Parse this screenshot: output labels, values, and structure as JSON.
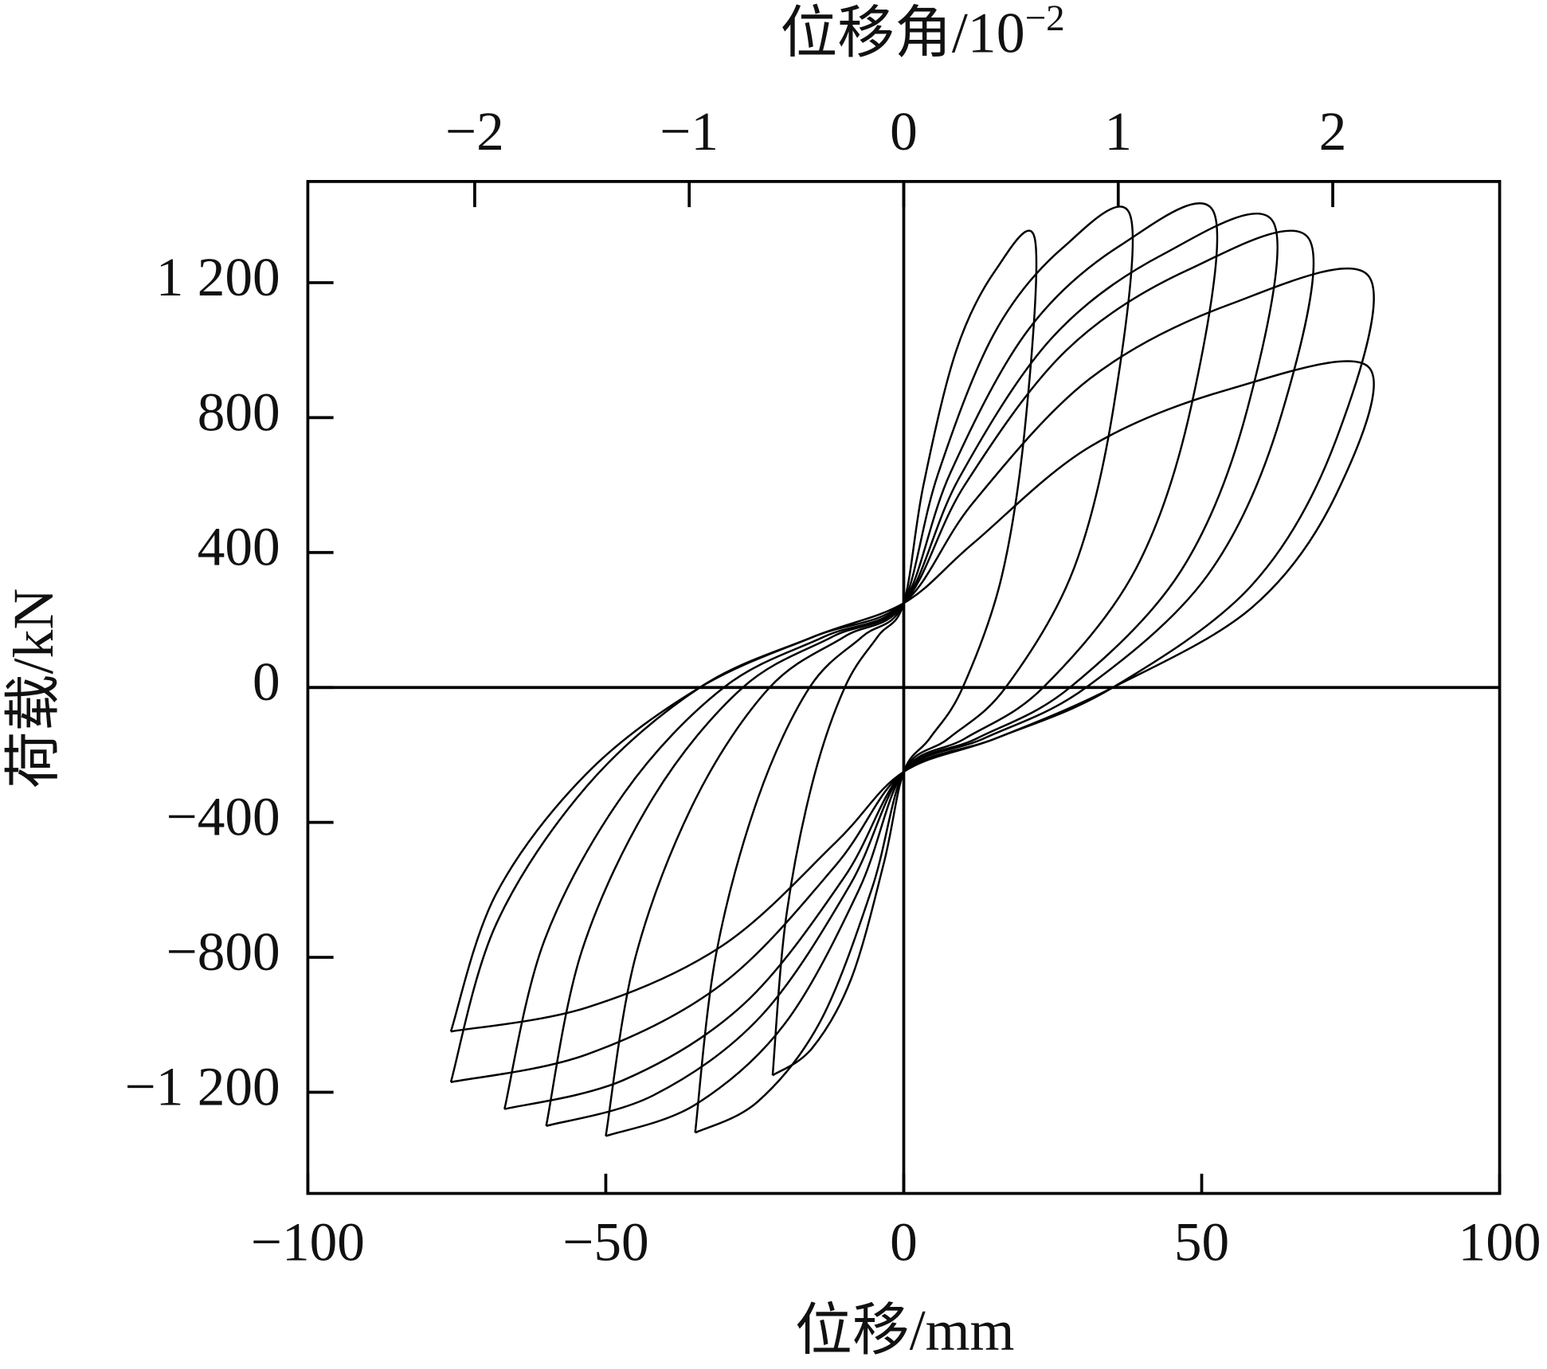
{
  "chart_data": {
    "type": "line",
    "xlabel": "位移/mm",
    "ylabel": "荷载/kN",
    "x2label": "位移角/10",
    "x2label_exponent": "−2",
    "color": "#000000",
    "zero_lines": true,
    "xlim": [
      -100,
      100
    ],
    "xticks": [
      {
        "value": -100,
        "label": "−100"
      },
      {
        "value": -50,
        "label": "−50"
      },
      0,
      50,
      100
    ],
    "x2lim": [
      -2.778,
      2.778
    ],
    "x2ticks": [
      {
        "value": -2,
        "label": "−2"
      },
      {
        "value": -1,
        "label": "−1"
      },
      0,
      1,
      2
    ],
    "ylim": [
      -1500,
      1500
    ],
    "yticks": [
      {
        "value": -1200,
        "label": "−1 200"
      },
      {
        "value": -800,
        "label": "−800"
      },
      {
        "value": -400,
        "label": "−400"
      },
      0,
      400,
      800,
      {
        "value": 1200,
        "label": "1 200"
      }
    ],
    "series": [
      {
        "x": [
          -22,
          -19.8,
          -15.4,
          -9.9,
          -4.4,
          0,
          3.3,
          8.8,
          15.4,
          22,
          20.5,
          16.5,
          9.9,
          4.4,
          0,
          -3.3,
          -8.8,
          -15.4,
          -22
        ],
        "values": [
          -1150,
          -690,
          -288,
          0,
          150,
          250,
          599,
          998,
          1237,
          1330,
          798,
          333,
          0,
          -150,
          -250,
          -518,
          -863,
          -1070,
          -1150
        ]
      },
      {
        "x": [
          -35,
          -31.5,
          -24.5,
          -15.8,
          -7,
          0,
          5.7,
          15.2,
          26.6,
          38,
          35.3,
          28.5,
          17.1,
          7.6,
          0,
          -5.3,
          -14,
          -24.5,
          -35
        ],
        "values": [
          -1320,
          -792,
          -330,
          0,
          150,
          250,
          630,
          1050,
          1302,
          1400,
          840,
          350,
          0,
          -150,
          -250,
          -594,
          -990,
          -1228,
          -1320
        ]
      },
      {
        "x": [
          -50,
          -45,
          -35,
          -22.5,
          -10,
          0,
          7.8,
          20.8,
          36.4,
          52,
          48.4,
          39,
          23.4,
          10.4,
          0,
          -7.5,
          -20,
          -35,
          -50
        ],
        "values": [
          -1330,
          -798,
          -333,
          0,
          150,
          250,
          635,
          1058,
          1311,
          1410,
          846,
          353,
          0,
          -150,
          -250,
          -599,
          -998,
          -1237,
          -1330
        ]
      },
      {
        "x": [
          -60,
          -54,
          -42,
          -27,
          -12,
          0,
          9.3,
          24.8,
          43.4,
          62,
          57.7,
          46.5,
          27.9,
          12.4,
          0,
          -9,
          -24,
          -42,
          -60
        ],
        "values": [
          -1300,
          -780,
          -325,
          0,
          150,
          250,
          621,
          1035,
          1283,
          1380,
          828,
          345,
          0,
          -150,
          -250,
          -585,
          -975,
          -1209,
          -1300
        ]
      },
      {
        "x": [
          -67,
          -60.3,
          -46.9,
          -30.2,
          -13.4,
          0,
          10.2,
          27.2,
          47.6,
          68,
          63.2,
          51,
          30.6,
          13.6,
          0,
          -10,
          -26.8,
          -46.9,
          -67
        ],
        "values": [
          -1250,
          -750,
          -313,
          0,
          150,
          250,
          599,
          998,
          1237,
          1330,
          798,
          333,
          0,
          -150,
          -250,
          -563,
          -938,
          -1163,
          -1250
        ]
      },
      {
        "x": [
          -76,
          -68.4,
          -53.2,
          -34.2,
          -15.2,
          0,
          11.7,
          31.2,
          54.6,
          78,
          72.5,
          58.5,
          35.1,
          15.6,
          0,
          -11.4,
          -30.4,
          -53.2,
          -76
        ],
        "values": [
          -1170,
          -702,
          -293,
          0,
          150,
          250,
          549,
          915,
          1135,
          1220,
          732,
          305,
          0,
          -150,
          -250,
          -527,
          -878,
          -1088,
          -1170
        ]
      },
      {
        "x": [
          -76,
          -68.4,
          -53.2,
          -34.2,
          -15.2,
          0,
          11.7,
          31.2,
          54.6,
          78,
          72.5,
          58.5,
          35.1,
          15.6,
          0,
          -11.4,
          -30.4,
          -53.2,
          -76
        ],
        "values": [
          -1020,
          -612,
          -255,
          0,
          150,
          250,
          428,
          713,
          884,
          950,
          570,
          238,
          0,
          -150,
          -250,
          -459,
          -765,
          -949,
          -1020
        ]
      }
    ]
  }
}
